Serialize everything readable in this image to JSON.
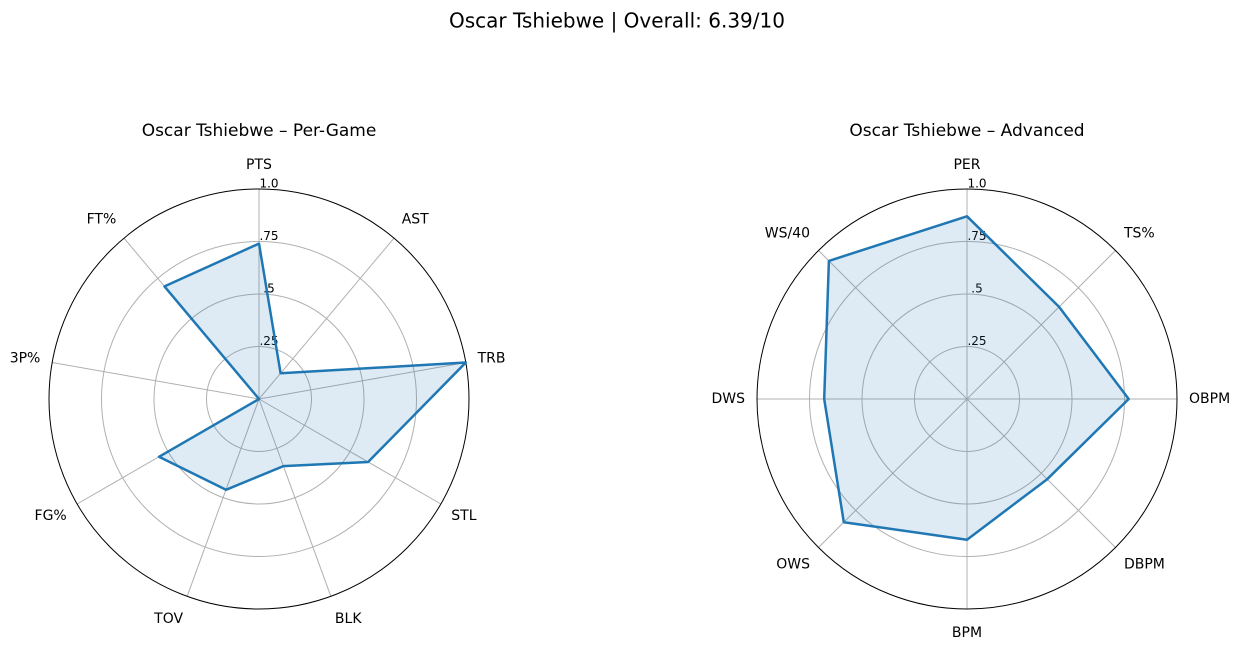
{
  "title": "Oscar Tshiebwe | Overall: 6.39/10",
  "chart_data": [
    {
      "type": "radar",
      "title": "Oscar Tshiebwe – Per-Game",
      "categories": [
        "PTS",
        "AST",
        "TRB",
        "STL",
        "BLK",
        "TOV",
        "FG%",
        "3P%",
        "FT%"
      ],
      "values": [
        0.74,
        0.16,
        1.0,
        0.6,
        0.34,
        0.46,
        0.55,
        0.0,
        0.7
      ],
      "color": "#1f77b4",
      "rlim": [
        0,
        1
      ],
      "rticks": [
        {
          "value": 0.25,
          "label": ".25"
        },
        {
          "value": 0.5,
          "label": ".5"
        },
        {
          "value": 0.75,
          "label": ".75"
        },
        {
          "value": 1.0,
          "label": "1.0"
        }
      ],
      "grid": true
    },
    {
      "type": "radar",
      "title": "Oscar Tshiebwe – Advanced",
      "categories": [
        "PER",
        "TS%",
        "OBPM",
        "DBPM",
        "BPM",
        "OWS",
        "DWS",
        "WS/40"
      ],
      "values": [
        0.87,
        0.62,
        0.77,
        0.54,
        0.67,
        0.83,
        0.68,
        0.93
      ],
      "color": "#1f77b4",
      "rlim": [
        0,
        1
      ],
      "rticks": [
        {
          "value": 0.25,
          "label": ".25"
        },
        {
          "value": 0.5,
          "label": ".5"
        },
        {
          "value": 0.75,
          "label": ".75"
        },
        {
          "value": 1.0,
          "label": "1.0"
        }
      ],
      "grid": true
    }
  ]
}
